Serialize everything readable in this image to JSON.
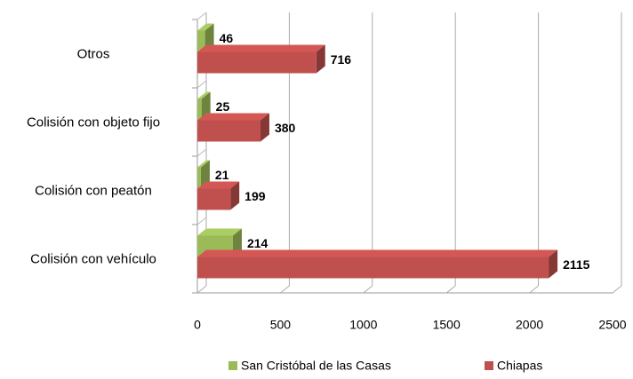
{
  "chart_data": {
    "type": "bar",
    "orientation": "horizontal",
    "categories": [
      "Colisión con vehículo",
      "Colisión con peatón",
      "Colisión con objeto fijo",
      "Otros"
    ],
    "series": [
      {
        "name": "San Cristóbal de las Casas",
        "color": "#9bbb59",
        "values": [
          214,
          21,
          25,
          46
        ]
      },
      {
        "name": "Chiapas",
        "color": "#c0504d",
        "values": [
          2115,
          199,
          380,
          716
        ]
      }
    ],
    "xlim": [
      0,
      2500
    ],
    "xticks": [
      0,
      500,
      1000,
      1500,
      2000,
      2500
    ],
    "grid": true,
    "legend": "bottom"
  }
}
